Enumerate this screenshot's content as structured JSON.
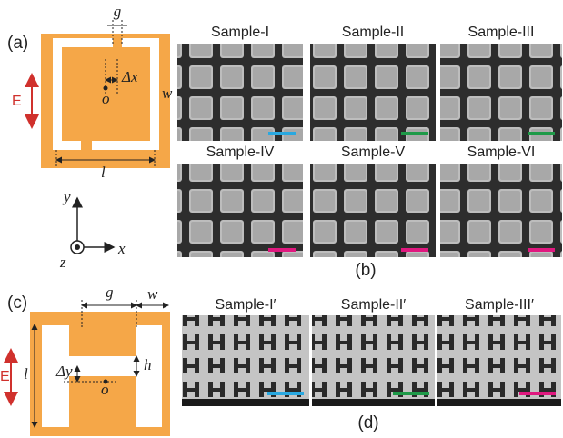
{
  "panel_a": {
    "label": "(a)",
    "g": "g",
    "dx": "Δx",
    "w": "w",
    "E": "E",
    "o": "o",
    "l": "l",
    "axis_y": "y",
    "axis_x": "x",
    "axis_z": "z"
  },
  "panel_b": {
    "label": "(b)",
    "samples": [
      {
        "name": "Sample-I",
        "bar_color": "#29a8e0"
      },
      {
        "name": "Sample-II",
        "bar_color": "#1e9a48"
      },
      {
        "name": "Sample-III",
        "bar_color": "#1e9a48"
      },
      {
        "name": "Sample-IV",
        "bar_color": "#e0187f"
      },
      {
        "name": "Sample-V",
        "bar_color": "#e0187f"
      },
      {
        "name": "Sample-VI",
        "bar_color": "#e0187f"
      }
    ]
  },
  "panel_c": {
    "label": "(c)",
    "g": "g",
    "w": "w",
    "E": "E",
    "l": "l",
    "h": "h",
    "dy": "Δy",
    "o": "o"
  },
  "panel_d": {
    "label": "(d)",
    "samples": [
      {
        "name": "Sample-I′",
        "bar_color": "#29a8e0"
      },
      {
        "name": "Sample-II′",
        "bar_color": "#1e9a48"
      },
      {
        "name": "Sample-III′",
        "bar_color": "#e0187f"
      }
    ]
  }
}
